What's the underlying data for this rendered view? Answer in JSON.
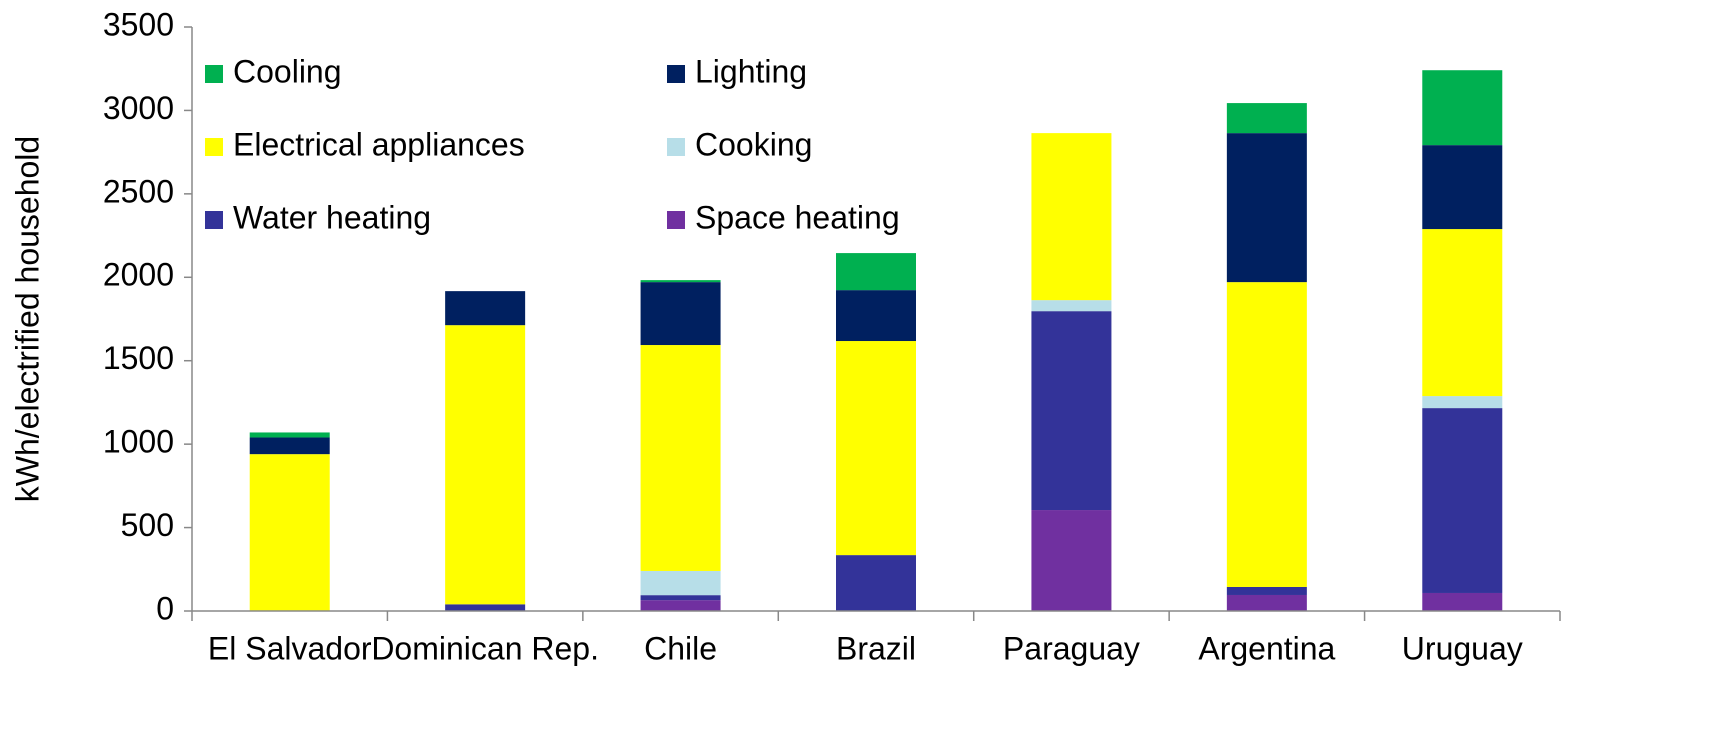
{
  "chart_data": {
    "type": "stacked_bar",
    "y_label": "kWh/electrified household",
    "categories": [
      "El Salvador",
      "Dominican Rep.",
      "Chile",
      "Brazil",
      "Paraguay",
      "Argentina",
      "Uruguay"
    ],
    "series": [
      {
        "name": "Space heating",
        "color": "#7030a0",
        "values": [
          0,
          0,
          65,
          0,
          605,
          96,
          108
        ]
      },
      {
        "name": "Water heating",
        "color": "#333399",
        "values": [
          0,
          40,
          30,
          335,
          1192,
          48,
          1108
        ]
      },
      {
        "name": "Cooking",
        "color": "#b7dee8",
        "values": [
          0,
          0,
          145,
          0,
          66,
          0,
          72
        ]
      },
      {
        "name": "Electrical appliances",
        "color": "#ffff00",
        "values": [
          940,
          1673,
          1354,
          1283,
          1001,
          1827,
          1001
        ]
      },
      {
        "name": "Lighting",
        "color": "#002060",
        "values": [
          100,
          204,
          377,
          305,
          0,
          893,
          503
        ]
      },
      {
        "name": "Cooling",
        "color": "#00b050",
        "values": [
          30,
          0,
          12,
          222,
          0,
          180,
          449
        ]
      }
    ],
    "ylim": [
      0,
      3500
    ],
    "yticks": [
      0,
      500,
      1000,
      1500,
      2000,
      2500,
      3000,
      3500
    ]
  }
}
